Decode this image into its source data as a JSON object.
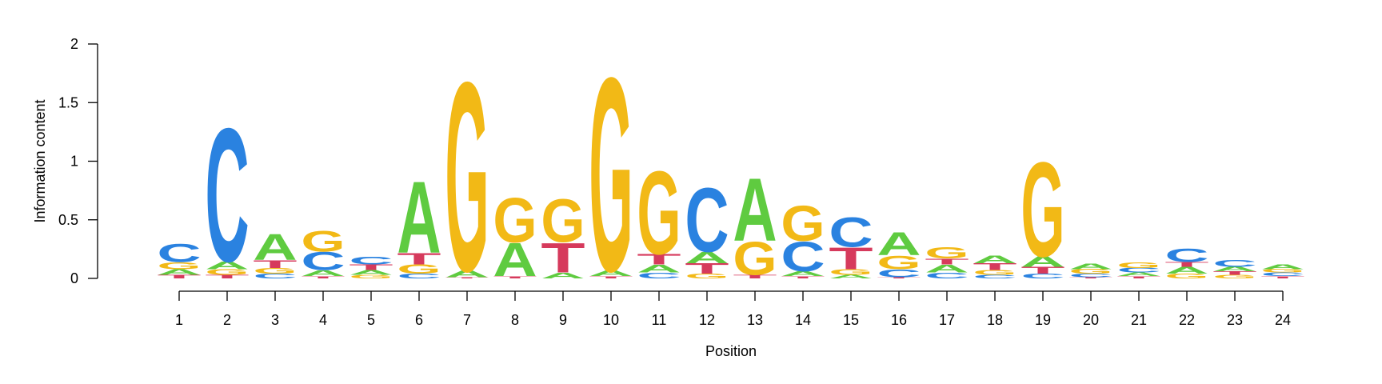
{
  "colors": {
    "A": "#5fcb40",
    "C": "#2a82e0",
    "G": "#f2b916",
    "T": "#d63a5c",
    "axis": "#000000",
    "background": "#ffffff"
  },
  "chart_data": {
    "type": "sequence-logo",
    "xlabel": "Position",
    "ylabel": "Information content",
    "ylim": [
      0,
      2
    ],
    "yticks": [
      0,
      0.5,
      1,
      1.5,
      2
    ],
    "ytick_labels": [
      "0",
      "0.5",
      "1",
      "1.5",
      "2"
    ],
    "positions": [
      "1",
      "2",
      "3",
      "4",
      "5",
      "6",
      "7",
      "8",
      "9",
      "10",
      "11",
      "12",
      "13",
      "14",
      "15",
      "16",
      "17",
      "18",
      "19",
      "20",
      "21",
      "22",
      "23",
      "24"
    ],
    "stacks": [
      [
        [
          "T",
          0.03
        ],
        [
          "A",
          0.05
        ],
        [
          "G",
          0.06
        ],
        [
          "C",
          0.16
        ]
      ],
      [
        [
          "T",
          0.03
        ],
        [
          "G",
          0.05
        ],
        [
          "A",
          0.07
        ],
        [
          "C",
          1.17
        ]
      ],
      [
        [
          "C",
          0.04
        ],
        [
          "G",
          0.05
        ],
        [
          "T",
          0.07
        ],
        [
          "A",
          0.23
        ]
      ],
      [
        [
          "T",
          0.02
        ],
        [
          "A",
          0.05
        ],
        [
          "C",
          0.16
        ],
        [
          "G",
          0.18
        ]
      ],
      [
        [
          "G",
          0.03
        ],
        [
          "A",
          0.04
        ],
        [
          "T",
          0.05
        ],
        [
          "C",
          0.07
        ]
      ],
      [
        [
          "C",
          0.04
        ],
        [
          "G",
          0.08
        ],
        [
          "T",
          0.1
        ],
        [
          "A",
          0.63
        ]
      ],
      [
        [
          "T",
          0.01
        ],
        [
          "A",
          0.06
        ],
        [
          "G",
          1.66
        ]
      ],
      [
        [
          "T",
          0.02
        ],
        [
          "A",
          0.29
        ],
        [
          "G",
          0.39
        ]
      ],
      [
        [
          "A",
          0.05
        ],
        [
          "T",
          0.26
        ],
        [
          "G",
          0.38
        ]
      ],
      [
        [
          "T",
          0.02
        ],
        [
          "A",
          0.05
        ],
        [
          "G",
          1.7
        ]
      ],
      [
        [
          "C",
          0.05
        ],
        [
          "A",
          0.07
        ],
        [
          "T",
          0.09
        ],
        [
          "G",
          0.73
        ]
      ],
      [
        [
          "G",
          0.04
        ],
        [
          "T",
          0.09
        ],
        [
          "A",
          0.1
        ],
        [
          "C",
          0.56
        ]
      ],
      [
        [
          "T",
          0.03
        ],
        [
          "G",
          0.29
        ],
        [
          "A",
          0.55
        ]
      ],
      [
        [
          "T",
          0.02
        ],
        [
          "A",
          0.04
        ],
        [
          "C",
          0.26
        ],
        [
          "G",
          0.31
        ]
      ],
      [
        [
          "A",
          0.03
        ],
        [
          "G",
          0.05
        ],
        [
          "T",
          0.19
        ],
        [
          "C",
          0.26
        ]
      ],
      [
        [
          "T",
          0.01
        ],
        [
          "C",
          0.07
        ],
        [
          "G",
          0.12
        ],
        [
          "A",
          0.2
        ]
      ],
      [
        [
          "C",
          0.05
        ],
        [
          "A",
          0.07
        ],
        [
          "T",
          0.05
        ],
        [
          "G",
          0.1
        ]
      ],
      [
        [
          "C",
          0.03
        ],
        [
          "G",
          0.04
        ],
        [
          "T",
          0.06
        ],
        [
          "A",
          0.07
        ]
      ],
      [
        [
          "C",
          0.04
        ],
        [
          "T",
          0.06
        ],
        [
          "A",
          0.09
        ],
        [
          "G",
          0.83
        ]
      ],
      [
        [
          "T",
          0.01
        ],
        [
          "C",
          0.03
        ],
        [
          "G",
          0.04
        ],
        [
          "A",
          0.05
        ]
      ],
      [
        [
          "T",
          0.02
        ],
        [
          "A",
          0.03
        ],
        [
          "C",
          0.04
        ],
        [
          "G",
          0.05
        ]
      ],
      [
        [
          "G",
          0.04
        ],
        [
          "A",
          0.06
        ],
        [
          "T",
          0.04
        ],
        [
          "C",
          0.12
        ]
      ],
      [
        [
          "G",
          0.03
        ],
        [
          "T",
          0.03
        ],
        [
          "A",
          0.04
        ],
        [
          "C",
          0.06
        ]
      ],
      [
        [
          "T",
          0.02
        ],
        [
          "C",
          0.03
        ],
        [
          "G",
          0.03
        ],
        [
          "A",
          0.04
        ]
      ]
    ]
  }
}
